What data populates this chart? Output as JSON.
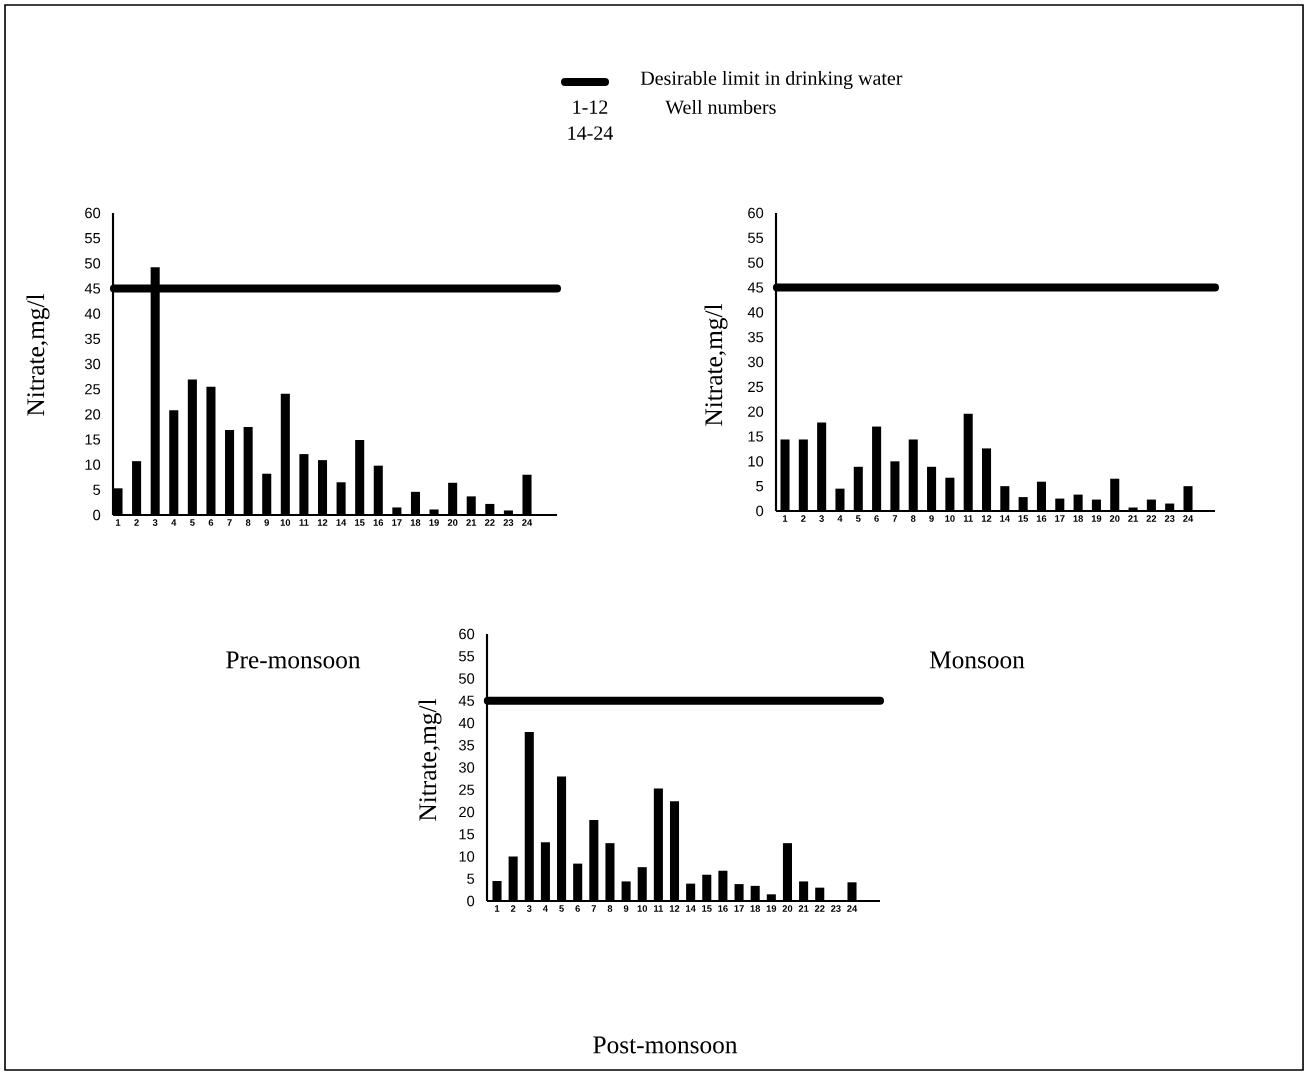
{
  "chart_data": [
    {
      "type": "bar",
      "title": "Pre-monsoon",
      "ylabel": "Nitrate,mg/l",
      "legend": "top",
      "categories": [
        "1",
        "2",
        "3",
        "4",
        "5",
        "6",
        "7",
        "8",
        "9",
        "10",
        "11",
        "12",
        "14",
        "15",
        "16",
        "17",
        "18",
        "19",
        "20",
        "21",
        "22",
        "23",
        "24"
      ],
      "values": [
        5.3,
        10.7,
        49.2,
        20.8,
        26.9,
        25.5,
        16.9,
        17.5,
        8.2,
        24.1,
        12.1,
        10.9,
        6.5,
        14.9,
        9.8,
        1.5,
        4.6,
        1.1,
        6.4,
        3.7,
        2.2,
        0.9,
        8.0
      ],
      "color": "#000000",
      "ylim": [
        0,
        60
      ],
      "yticks": [
        0,
        5,
        10,
        15,
        20,
        25,
        30,
        35,
        40,
        45,
        50,
        55,
        60
      ],
      "ref_lines": [
        {
          "axis": "y",
          "value": 45,
          "label": "Desirable limit in drinking water",
          "color": "#000000"
        }
      ],
      "annotations": [
        "1-12",
        "14-24",
        "Well numbers"
      ]
    },
    {
      "type": "bar",
      "title": "Monsoon",
      "ylabel": "Nitrate,mg/l",
      "categories": [
        "1",
        "2",
        "3",
        "4",
        "5",
        "6",
        "7",
        "8",
        "9",
        "10",
        "11",
        "12",
        "14",
        "15",
        "16",
        "17",
        "18",
        "19",
        "20",
        "21",
        "22",
        "23",
        "24"
      ],
      "values": [
        14.4,
        14.4,
        17.8,
        4.5,
        8.9,
        17.0,
        10.0,
        14.4,
        8.9,
        6.7,
        19.6,
        12.6,
        5.0,
        2.8,
        5.9,
        2.5,
        3.3,
        2.3,
        6.5,
        0.7,
        2.3,
        1.5,
        5.0
      ],
      "color": "#000000",
      "ylim": [
        0,
        60
      ],
      "yticks": [
        0,
        5,
        10,
        15,
        20,
        25,
        30,
        35,
        40,
        45,
        50,
        55,
        60
      ],
      "ref_lines": [
        {
          "axis": "y",
          "value": 45,
          "color": "#000000"
        }
      ]
    },
    {
      "type": "bar",
      "title": "Post-monsoon",
      "ylabel": "Nitrate,mg/l",
      "categories": [
        "1",
        "2",
        "3",
        "4",
        "5",
        "6",
        "7",
        "8",
        "9",
        "10",
        "11",
        "12",
        "14",
        "15",
        "16",
        "17",
        "18",
        "19",
        "20",
        "21",
        "22",
        "23",
        "24"
      ],
      "values": [
        4.5,
        10.0,
        38.0,
        13.2,
        28.0,
        8.4,
        18.2,
        13.0,
        4.4,
        7.6,
        25.3,
        22.4,
        3.9,
        5.9,
        6.8,
        3.8,
        3.4,
        1.5,
        13.0,
        4.4,
        3.0,
        0,
        4.2
      ],
      "color": "#000000",
      "ylim": [
        0,
        60
      ],
      "yticks": [
        0,
        5,
        10,
        15,
        20,
        25,
        30,
        35,
        40,
        45,
        50,
        55,
        60
      ],
      "ref_lines": [
        {
          "axis": "y",
          "value": 45,
          "color": "#000000"
        }
      ]
    }
  ]
}
